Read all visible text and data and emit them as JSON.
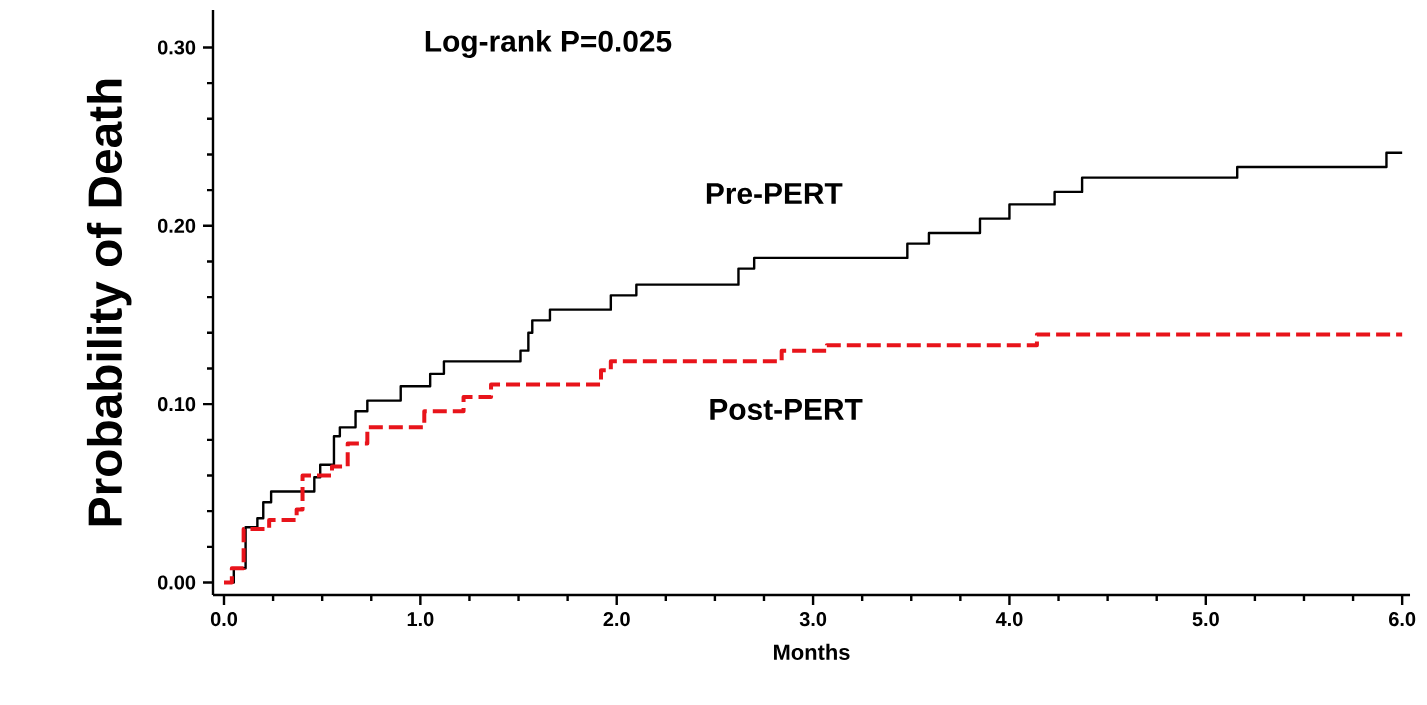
{
  "chart_data": {
    "type": "step",
    "xlabel": "Months",
    "ylabel": "Probability of Death",
    "annotations": [
      "Log-rank P=0.025"
    ],
    "xlim": [
      -0.056,
      6.04
    ],
    "ylim": [
      -0.007,
      0.321
    ],
    "xticks": [
      {
        "value": 0,
        "label": "0.0"
      },
      {
        "value": 1,
        "label": "1.0"
      },
      {
        "value": 2,
        "label": "2.0"
      },
      {
        "value": 3,
        "label": "3.0"
      },
      {
        "value": 4,
        "label": "4.0"
      },
      {
        "value": 5,
        "label": "5.0"
      },
      {
        "value": 6,
        "label": "6.0"
      }
    ],
    "yticks": [
      {
        "value": 0,
        "label": "0.00"
      },
      {
        "value": 0.1,
        "label": "0.10"
      },
      {
        "value": 0.2,
        "label": "0.20"
      },
      {
        "value": 0.3,
        "label": "0.30"
      }
    ],
    "grid": false,
    "legend": false,
    "series": [
      {
        "name": "Pre-PERT",
        "color": "#000000",
        "line_style": "solid",
        "x": [
          0,
          0.05,
          0.11,
          0.17,
          0.2,
          0.24,
          0.46,
          0.49,
          0.56,
          0.59,
          0.67,
          0.73,
          0.9,
          1.05,
          1.12,
          1.51,
          1.55,
          1.57,
          1.66,
          1.97,
          2.1,
          2.62,
          2.7,
          3.48,
          3.59,
          3.85,
          4.0,
          4.23,
          4.37,
          5.16,
          5.92,
          6.0
        ],
        "values": [
          0,
          0.008,
          0.031,
          0.036,
          0.045,
          0.051,
          0.059,
          0.066,
          0.082,
          0.087,
          0.096,
          0.102,
          0.11,
          0.117,
          0.124,
          0.13,
          0.14,
          0.147,
          0.153,
          0.161,
          0.167,
          0.176,
          0.182,
          0.19,
          0.196,
          0.204,
          0.212,
          0.219,
          0.227,
          0.233,
          0.241,
          0.241
        ]
      },
      {
        "name": "Post-PERT",
        "color": "#e8141b",
        "line_style": "dashed",
        "x": [
          0,
          0.04,
          0.1,
          0.23,
          0.37,
          0.4,
          0.55,
          0.63,
          0.73,
          1.02,
          1.22,
          1.36,
          1.92,
          1.97,
          2.03,
          2.84,
          3.07,
          4.14,
          6.0
        ],
        "values": [
          0,
          0.008,
          0.03,
          0.035,
          0.041,
          0.06,
          0.065,
          0.078,
          0.087,
          0.096,
          0.104,
          0.111,
          0.119,
          0.124,
          0.124,
          0.13,
          0.133,
          0.139,
          0.139
        ]
      }
    ]
  }
}
